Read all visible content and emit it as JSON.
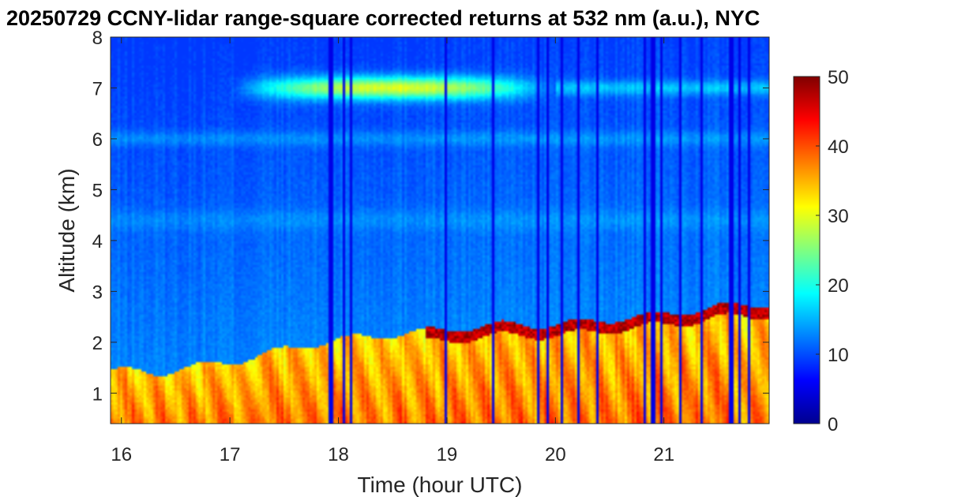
{
  "chart_data": {
    "type": "heatmap",
    "title": "20250729 CCNY-lidar range-square corrected returns at 532 nm (a.u.), NYC",
    "xlabel": "Time (hour UTC)",
    "ylabel": "Altitude (km)",
    "xlim": [
      15.9,
      21.97
    ],
    "ylim": [
      0.4,
      8.0
    ],
    "xticks": [
      "16",
      "17",
      "18",
      "19",
      "20",
      "21"
    ],
    "yticks": [
      "1",
      "2",
      "3",
      "4",
      "5",
      "6",
      "7",
      "8"
    ],
    "colorbar": {
      "label": "",
      "range": [
        0,
        50
      ],
      "ticks": [
        "0",
        "10",
        "20",
        "30",
        "40",
        "50"
      ],
      "colormap": "jet"
    },
    "features": {
      "boundary_layer_top_km": [
        {
          "t": 15.9,
          "z": 1.45
        },
        {
          "t": 16.3,
          "z": 1.4
        },
        {
          "t": 16.8,
          "z": 1.55
        },
        {
          "t": 17.2,
          "z": 1.7
        },
        {
          "t": 17.6,
          "z": 1.9
        },
        {
          "t": 18.0,
          "z": 2.05
        },
        {
          "t": 18.5,
          "z": 2.15
        },
        {
          "t": 19.0,
          "z": 2.25
        },
        {
          "t": 19.5,
          "z": 2.35
        },
        {
          "t": 20.0,
          "z": 2.35
        },
        {
          "t": 20.5,
          "z": 2.45
        },
        {
          "t": 21.0,
          "z": 2.55
        },
        {
          "t": 21.5,
          "z": 2.7
        },
        {
          "t": 21.97,
          "z": 2.75
        }
      ],
      "cirrus_layer": {
        "t_start": 17.0,
        "t_end": 20.0,
        "z_km": 7.0,
        "peak_value": 30
      },
      "signal_dropout_times": [
        17.93,
        18.06,
        18.12,
        18.98,
        19.42,
        19.85,
        19.92,
        20.05,
        20.22,
        20.38,
        20.82,
        20.9,
        20.98,
        21.15,
        21.35,
        21.62,
        21.7,
        21.78
      ]
    }
  }
}
